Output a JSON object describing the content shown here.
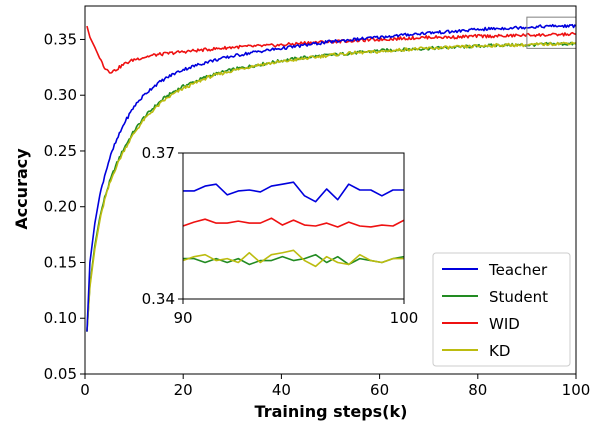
{
  "chart_data": {
    "type": "line",
    "title": "",
    "xlabel": "Training steps(k)",
    "ylabel": "Accuracy",
    "xlim": [
      0,
      100
    ],
    "ylim": [
      0.05,
      0.38
    ],
    "xticks": [
      0,
      20,
      40,
      60,
      80,
      100
    ],
    "yticks": [
      0.05,
      0.1,
      0.15,
      0.2,
      0.25,
      0.3,
      0.35
    ],
    "ytick_labels": [
      "0.05",
      "0.10",
      "0.15",
      "0.20",
      "0.25",
      "0.30",
      "0.35"
    ],
    "grid": false,
    "legend_position": "lower-right",
    "series": [
      {
        "name": "Teacher",
        "color": "#0000dd",
        "x": [
          0.4,
          1,
          2,
          3,
          4,
          5,
          6,
          7,
          8,
          10,
          12,
          14,
          16,
          18,
          20,
          25,
          30,
          35,
          40,
          45,
          50,
          55,
          60,
          65,
          70,
          75,
          80,
          85,
          90,
          95,
          100
        ],
        "y": [
          0.088,
          0.15,
          0.185,
          0.21,
          0.228,
          0.243,
          0.255,
          0.265,
          0.275,
          0.29,
          0.3,
          0.308,
          0.314,
          0.319,
          0.323,
          0.33,
          0.335,
          0.339,
          0.342,
          0.345,
          0.348,
          0.35,
          0.352,
          0.354,
          0.356,
          0.357,
          0.359,
          0.36,
          0.361,
          0.362,
          0.362
        ]
      },
      {
        "name": "Student",
        "color": "#228b22",
        "x": [
          0.4,
          1,
          2,
          3,
          4,
          5,
          6,
          7,
          8,
          10,
          12,
          14,
          16,
          18,
          20,
          25,
          30,
          35,
          40,
          45,
          50,
          55,
          60,
          65,
          70,
          75,
          80,
          85,
          90,
          95,
          100
        ],
        "y": [
          0.088,
          0.13,
          0.165,
          0.19,
          0.208,
          0.222,
          0.234,
          0.244,
          0.253,
          0.268,
          0.28,
          0.289,
          0.297,
          0.303,
          0.308,
          0.317,
          0.323,
          0.327,
          0.331,
          0.334,
          0.336,
          0.338,
          0.34,
          0.341,
          0.342,
          0.343,
          0.344,
          0.345,
          0.345,
          0.346,
          0.346
        ]
      },
      {
        "name": "WID",
        "color": "#ee1111",
        "x": [
          0.4,
          1,
          2,
          3,
          4,
          5,
          6,
          7,
          8,
          10,
          12,
          14,
          16,
          18,
          20,
          25,
          30,
          35,
          40,
          45,
          50,
          55,
          60,
          65,
          70,
          75,
          80,
          85,
          90,
          95,
          100
        ],
        "y": [
          0.362,
          0.352,
          0.343,
          0.333,
          0.325,
          0.321,
          0.322,
          0.325,
          0.328,
          0.332,
          0.334,
          0.336,
          0.337,
          0.338,
          0.339,
          0.341,
          0.343,
          0.344,
          0.345,
          0.347,
          0.348,
          0.349,
          0.35,
          0.351,
          0.352,
          0.352,
          0.353,
          0.353,
          0.354,
          0.354,
          0.355
        ]
      },
      {
        "name": "KD",
        "color": "#bcbc10",
        "x": [
          0.4,
          1,
          2,
          3,
          4,
          5,
          6,
          7,
          8,
          10,
          12,
          14,
          16,
          18,
          20,
          25,
          30,
          35,
          40,
          45,
          50,
          55,
          60,
          65,
          70,
          75,
          80,
          85,
          90,
          95,
          100
        ],
        "y": [
          0.088,
          0.128,
          0.162,
          0.187,
          0.206,
          0.22,
          0.232,
          0.242,
          0.251,
          0.266,
          0.278,
          0.287,
          0.295,
          0.301,
          0.306,
          0.316,
          0.322,
          0.327,
          0.33,
          0.333,
          0.336,
          0.338,
          0.339,
          0.341,
          0.342,
          0.343,
          0.344,
          0.345,
          0.345,
          0.346,
          0.347
        ]
      }
    ],
    "inset": {
      "xlim": [
        90,
        100
      ],
      "ylim": [
        0.34,
        0.37
      ],
      "xticks": [
        90,
        100
      ],
      "xtick_labels": [
        "90",
        "100"
      ],
      "yticks": [
        0.34,
        0.37
      ],
      "ytick_labels": [
        "0.34",
        "0.37"
      ],
      "x": [
        90.0,
        90.5,
        91.0,
        91.5,
        92.0,
        92.5,
        93.0,
        93.5,
        94.0,
        94.5,
        95.0,
        95.5,
        96.0,
        96.5,
        97.0,
        97.5,
        98.0,
        98.5,
        99.0,
        99.5,
        100.0
      ],
      "series": [
        {
          "name": "Teacher",
          "color": "#0000dd",
          "y": [
            0.3622,
            0.3622,
            0.3632,
            0.3636,
            0.3614,
            0.3622,
            0.3624,
            0.362,
            0.3632,
            0.3636,
            0.364,
            0.3612,
            0.36,
            0.3626,
            0.3604,
            0.3636,
            0.3624,
            0.3624,
            0.3612,
            0.3624,
            0.3624
          ]
        },
        {
          "name": "WID",
          "color": "#ee1111",
          "y": [
            0.355,
            0.3558,
            0.3564,
            0.3556,
            0.3556,
            0.356,
            0.3556,
            0.3556,
            0.3566,
            0.3552,
            0.3562,
            0.3552,
            0.355,
            0.3556,
            0.3548,
            0.3558,
            0.355,
            0.3548,
            0.3552,
            0.355,
            0.3562
          ]
        },
        {
          "name": "Student",
          "color": "#228b22",
          "y": [
            0.3483,
            0.3483,
            0.3475,
            0.3483,
            0.3475,
            0.3483,
            0.3471,
            0.3479,
            0.3479,
            0.3487,
            0.3479,
            0.3483,
            0.3491,
            0.3475,
            0.3487,
            0.3471,
            0.3483,
            0.3479,
            0.3475,
            0.3483,
            0.3487
          ]
        },
        {
          "name": "KD",
          "color": "#bcbc10",
          "y": [
            0.3479,
            0.3487,
            0.3491,
            0.3479,
            0.3483,
            0.3475,
            0.3495,
            0.3475,
            0.3491,
            0.3495,
            0.35,
            0.3479,
            0.3467,
            0.3487,
            0.3475,
            0.3471,
            0.3491,
            0.3479,
            0.3475,
            0.3483,
            0.3483
          ]
        }
      ]
    },
    "zoom_box": {
      "xlim": [
        90,
        100
      ],
      "ylim": [
        0.342,
        0.37
      ]
    }
  }
}
